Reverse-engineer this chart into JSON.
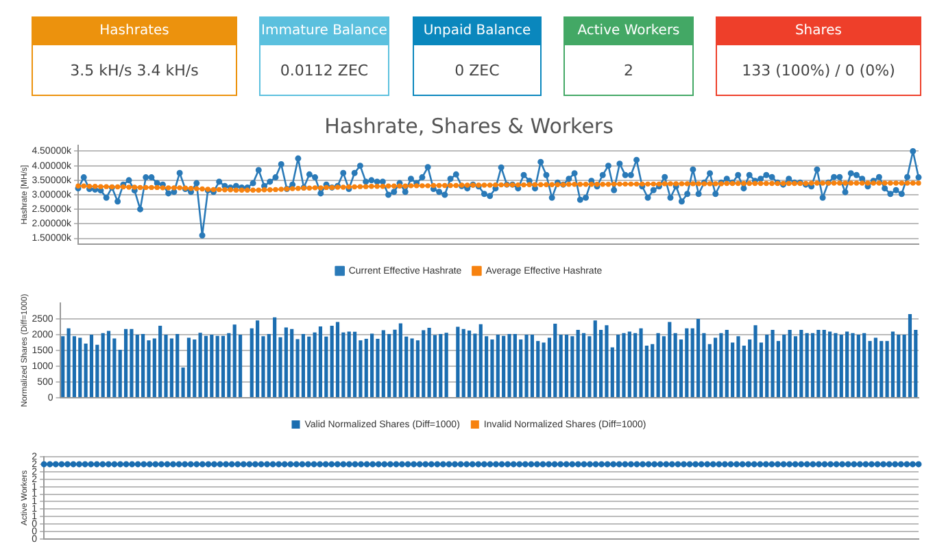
{
  "chart_data": [
    {
      "type": "other",
      "categories": [
        "Hashrates",
        "Immature Balance",
        "Unpaid Balance",
        "Active Workers",
        "Shares"
      ],
      "annotations": [
        "3.5 kH/s   3.4 kH/s",
        "0.0112 ZEC",
        "0 ZEC",
        "2",
        "133 (100%) / 0 (0%)"
      ],
      "colors": [
        "#ec920d",
        "#5bc0de",
        "#0a87bd",
        "#43a865",
        "#ee3f2a"
      ]
    },
    {
      "type": "line",
      "title": "Hashrate, Shares & Workers",
      "ylabel": "Hashrate [MH/s]",
      "legend": "bottom",
      "grid": "y",
      "marker": "circle",
      "tick_labels": "y",
      "ylim": [
        1.3,
        4.7
      ],
      "yticks": [
        {
          "value": 1.5,
          "label": "1.50000k"
        },
        {
          "value": 2,
          "label": "2.00000k"
        },
        {
          "value": 2.5,
          "label": "2.50000k"
        },
        {
          "value": 3,
          "label": "3.00000k"
        },
        {
          "value": 3.5,
          "label": "3.50000k"
        },
        {
          "value": 4,
          "label": "4.00000k"
        },
        {
          "value": 4.5,
          "label": "4.50000k"
        }
      ],
      "categories": [
        null,
        null,
        null,
        null,
        null,
        null,
        null,
        null,
        null,
        null,
        null,
        null,
        null,
        null,
        null,
        null,
        null,
        null,
        null,
        null,
        null,
        null,
        null,
        null,
        null,
        null,
        null,
        null,
        null,
        null,
        null,
        null,
        null,
        null,
        null,
        null,
        null,
        null,
        null,
        null,
        null,
        null,
        null,
        null,
        null,
        null,
        null,
        null,
        null,
        null,
        null,
        null,
        null,
        null,
        null,
        null,
        null,
        null,
        null,
        null,
        null,
        null,
        null,
        null,
        null,
        null,
        null,
        null,
        null,
        null,
        null,
        null,
        null,
        null,
        null,
        null,
        null,
        null,
        null,
        null,
        null,
        null,
        null,
        null,
        null,
        null,
        null,
        null,
        null,
        null,
        null,
        null,
        null,
        null,
        null,
        null,
        null,
        null,
        null,
        null,
        null,
        null,
        null,
        null,
        null,
        null,
        null,
        null,
        null,
        null,
        null,
        null,
        null,
        null,
        null,
        null,
        null,
        null,
        null,
        null,
        null,
        null,
        null,
        null,
        null,
        null,
        null,
        null,
        null,
        null,
        null,
        null,
        null,
        null,
        null,
        null,
        null,
        null,
        null,
        null,
        null,
        null,
        null,
        null,
        null,
        null,
        null,
        null,
        null,
        null
      ],
      "series": [
        {
          "name": "Current Effective Hashrate",
          "color": "#2a7ab8",
          "values": [
            3.22,
            3.6,
            3.2,
            3.18,
            3.15,
            2.9,
            3.25,
            2.77,
            3.35,
            3.5,
            3.15,
            2.5,
            3.6,
            3.6,
            3.4,
            3.35,
            3.05,
            3.1,
            3.75,
            3.2,
            3.1,
            3.4,
            1.6,
            3.15,
            3.1,
            3.45,
            3.3,
            3.25,
            3.3,
            3.25,
            3.25,
            3.4,
            3.85,
            3.3,
            3.45,
            3.6,
            4.05,
            3.2,
            3.35,
            4.25,
            3.25,
            3.7,
            3.6,
            3.05,
            3.35,
            3.25,
            3.3,
            3.75,
            3.2,
            3.75,
            4.0,
            3.45,
            3.5,
            3.45,
            3.45,
            3.0,
            3.1,
            3.4,
            3.1,
            3.55,
            3.4,
            3.6,
            3.95,
            3.2,
            3.1,
            3.0,
            3.55,
            3.7,
            3.3,
            3.22,
            3.35,
            3.29,
            3.03,
            2.96,
            3.22,
            3.94,
            3.35,
            3.35,
            3.22,
            3.68,
            3.48,
            3.22,
            4.13,
            3.68,
            2.9,
            3.42,
            3.35,
            3.55,
            3.74,
            2.83,
            2.9,
            3.48,
            3.29,
            3.68,
            4.0,
            3.16,
            4.07,
            3.68,
            3.68,
            4.2,
            3.29,
            2.9,
            3.16,
            3.29,
            3.61,
            2.9,
            3.29,
            2.77,
            3.03,
            3.87,
            3.03,
            3.42,
            3.74,
            3.03,
            3.42,
            3.55,
            3.42,
            3.68,
            3.22,
            3.68,
            3.48,
            3.55,
            3.68,
            3.61,
            3.42,
            3.35,
            3.55,
            3.42,
            3.42,
            3.35,
            3.29,
            3.87,
            2.9,
            3.42,
            3.61,
            3.61,
            3.09,
            3.74,
            3.68,
            3.55,
            3.29,
            3.48,
            3.61,
            3.22,
            3.03,
            3.16,
            3.03,
            3.61,
            4.5,
            3.6
          ]
        },
        {
          "name": "Average Effective Hashrate",
          "color": "#f7820f",
          "values": [
            3.3,
            3.3,
            3.29,
            3.29,
            3.28,
            3.28,
            3.27,
            3.27,
            3.27,
            3.26,
            3.26,
            3.25,
            3.25,
            3.25,
            3.25,
            3.24,
            3.24,
            3.24,
            3.24,
            3.23,
            3.22,
            3.21,
            3.2,
            3.19,
            3.18,
            3.18,
            3.17,
            3.17,
            3.16,
            3.16,
            3.16,
            3.16,
            3.16,
            3.17,
            3.17,
            3.18,
            3.19,
            3.2,
            3.21,
            3.22,
            3.23,
            3.23,
            3.24,
            3.24,
            3.25,
            3.25,
            3.26,
            3.26,
            3.27,
            3.27,
            3.28,
            3.28,
            3.29,
            3.29,
            3.29,
            3.3,
            3.3,
            3.3,
            3.3,
            3.31,
            3.31,
            3.31,
            3.31,
            3.32,
            3.32,
            3.32,
            3.32,
            3.32,
            3.33,
            3.33,
            3.33,
            3.33,
            3.33,
            3.33,
            3.34,
            3.34,
            3.34,
            3.34,
            3.34,
            3.34,
            3.35,
            3.35,
            3.35,
            3.35,
            3.35,
            3.35,
            3.35,
            3.36,
            3.36,
            3.36,
            3.36,
            3.36,
            3.36,
            3.36,
            3.36,
            3.37,
            3.37,
            3.37,
            3.37,
            3.37,
            3.37,
            3.37,
            3.37,
            3.37,
            3.38,
            3.38,
            3.38,
            3.38,
            3.38,
            3.38,
            3.38,
            3.38,
            3.38,
            3.38,
            3.38,
            3.39,
            3.39,
            3.39,
            3.39,
            3.39,
            3.39,
            3.39,
            3.39,
            3.39,
            3.39,
            3.39,
            3.39,
            3.39,
            3.39,
            3.39,
            3.4,
            3.4,
            3.4,
            3.4,
            3.4,
            3.4,
            3.4,
            3.4,
            3.4,
            3.4,
            3.4,
            3.4,
            3.4,
            3.4,
            3.4,
            3.4,
            3.4,
            3.4,
            3.4,
            3.4
          ]
        }
      ]
    },
    {
      "type": "bar",
      "ylabel": "Normalized Shares (Diff=1000)",
      "legend": "bottom",
      "grid": "y",
      "tick_labels": "y",
      "ylim": [
        0,
        3000
      ],
      "yticks": [
        0,
        500,
        1000,
        1500,
        2000,
        2500
      ],
      "categories": [
        null,
        null,
        null,
        null,
        null,
        null,
        null,
        null,
        null,
        null,
        null,
        null,
        null,
        null,
        null,
        null,
        null,
        null,
        null,
        null,
        null,
        null,
        null,
        null,
        null,
        null,
        null,
        null,
        null,
        null,
        null,
        null,
        null,
        null,
        null,
        null,
        null,
        null,
        null,
        null,
        null,
        null,
        null,
        null,
        null,
        null,
        null,
        null,
        null,
        null,
        null,
        null,
        null,
        null,
        null,
        null,
        null,
        null,
        null,
        null,
        null,
        null,
        null,
        null,
        null,
        null,
        null,
        null,
        null,
        null,
        null,
        null,
        null,
        null,
        null,
        null,
        null,
        null,
        null,
        null,
        null,
        null,
        null,
        null,
        null,
        null,
        null,
        null,
        null,
        null,
        null,
        null,
        null,
        null,
        null,
        null,
        null,
        null,
        null,
        null,
        null,
        null,
        null,
        null,
        null,
        null,
        null,
        null,
        null,
        null,
        null,
        null,
        null,
        null,
        null,
        null,
        null,
        null,
        null,
        null,
        null,
        null,
        null,
        null,
        null,
        null,
        null,
        null,
        null,
        null,
        null,
        null,
        null,
        null,
        null,
        null,
        null,
        null,
        null,
        null,
        null,
        null,
        null,
        null,
        null,
        null,
        null,
        null,
        null,
        null
      ],
      "stacked": true,
      "series": [
        {
          "name": "Valid Normalized Shares (Diff=1000)",
          "color": "#1b6db0",
          "values": [
            1950,
            2200,
            1950,
            1900,
            1720,
            2000,
            1680,
            2050,
            2120,
            1880,
            1520,
            2180,
            2180,
            2000,
            2020,
            1820,
            1880,
            2280,
            2000,
            1880,
            2020,
            960,
            1900,
            1850,
            2060,
            1960,
            2000,
            1960,
            1960,
            2050,
            2320,
            2000,
            null,
            2200,
            2450,
            1950,
            2020,
            2550,
            1920,
            2230,
            2180,
            1860,
            2020,
            1940,
            2070,
            2260,
            1940,
            2280,
            2400,
            2070,
            2100,
            2090,
            1820,
            1870,
            2030,
            1870,
            2140,
            2020,
            2160,
            2360,
            1940,
            1880,
            1820,
            2140,
            2220,
            1990,
            2020,
            2060,
            null,
            2250,
            2180,
            2130,
            2030,
            2330,
            1950,
            1850,
            2000,
            1960,
            2020,
            2020,
            1850,
            2000,
            2000,
            1800,
            1750,
            1900,
            2350,
            2000,
            2000,
            1950,
            2150,
            2050,
            1950,
            2450,
            2150,
            2300,
            1600,
            2000,
            2050,
            2100,
            2050,
            2200,
            1650,
            1700,
            2050,
            1950,
            2400,
            2050,
            1850,
            2200,
            2200,
            2500,
            2050,
            1700,
            1900,
            2050,
            2150,
            1750,
            1950,
            1650,
            1850,
            2300,
            1750,
            2000,
            2150,
            1800,
            2000,
            2150,
            1950,
            2150,
            2050,
            2050,
            2150,
            2150,
            2100,
            2050,
            2000,
            2100,
            2050,
            2000,
            2050,
            1800,
            1900,
            1800,
            1800,
            2100,
            2000,
            2000,
            2650,
            2150
          ]
        },
        {
          "name": "Invalid Normalized Shares (Diff=1000)",
          "color": "#f7820f",
          "values": [
            0,
            0,
            0,
            0,
            0,
            0,
            0,
            0,
            0,
            0,
            0,
            0,
            0,
            0,
            0,
            0,
            0,
            0,
            0,
            0,
            0,
            0,
            0,
            0,
            0,
            0,
            0,
            0,
            0,
            0,
            0,
            0,
            0,
            0,
            0,
            0,
            0,
            0,
            0,
            0,
            0,
            0,
            0,
            0,
            0,
            0,
            0,
            0,
            0,
            0,
            0,
            0,
            0,
            0,
            0,
            0,
            0,
            0,
            0,
            0,
            0,
            0,
            0,
            0,
            0,
            0,
            0,
            0,
            0,
            0,
            0,
            0,
            0,
            0,
            0,
            0,
            0,
            0,
            0,
            0,
            0,
            0,
            0,
            0,
            0,
            0,
            0,
            0,
            0,
            0,
            0,
            0,
            0,
            0,
            0,
            0,
            0,
            0,
            0,
            0,
            0,
            0,
            0,
            0,
            0,
            0,
            0,
            0,
            0,
            0,
            0,
            0,
            0,
            0,
            0,
            0,
            0,
            0,
            0,
            0,
            0,
            0,
            0,
            0,
            0,
            0,
            0,
            0,
            0,
            0,
            0,
            0,
            0,
            0,
            0,
            0,
            0,
            0,
            0,
            0,
            0,
            0,
            0,
            0,
            0,
            0,
            0,
            0,
            0,
            0
          ]
        }
      ]
    },
    {
      "type": "line",
      "ylabel": "Active Workers",
      "grid": "y",
      "marker": "circle",
      "tick_labels": "y",
      "ylim": [
        0,
        2.2
      ],
      "yticks": [
        {
          "value": 0,
          "label": "0"
        },
        {
          "value": 0.2,
          "label": "0"
        },
        {
          "value": 0.4,
          "label": "0"
        },
        {
          "value": 0.6,
          "label": "1"
        },
        {
          "value": 0.8,
          "label": "1"
        },
        {
          "value": 1,
          "label": "1"
        },
        {
          "value": 1.2,
          "label": "1"
        },
        {
          "value": 1.4,
          "label": "1"
        },
        {
          "value": 1.6,
          "label": "2"
        },
        {
          "value": 1.8,
          "label": "2"
        },
        {
          "value": 2,
          "label": "2"
        },
        {
          "value": 2.2,
          "label": "2"
        }
      ],
      "categories": [
        null,
        null,
        null,
        null,
        null,
        null,
        null,
        null,
        null,
        null,
        null,
        null,
        null,
        null,
        null,
        null,
        null,
        null,
        null,
        null,
        null,
        null,
        null,
        null,
        null,
        null,
        null,
        null,
        null,
        null,
        null,
        null,
        null,
        null,
        null,
        null,
        null,
        null,
        null,
        null,
        null,
        null,
        null,
        null,
        null,
        null,
        null,
        null,
        null,
        null,
        null,
        null,
        null,
        null,
        null,
        null,
        null,
        null,
        null,
        null,
        null,
        null,
        null,
        null,
        null,
        null,
        null,
        null,
        null,
        null,
        null,
        null,
        null,
        null,
        null,
        null,
        null,
        null,
        null,
        null,
        null,
        null,
        null,
        null,
        null,
        null,
        null,
        null,
        null,
        null,
        null,
        null,
        null,
        null,
        null,
        null,
        null,
        null,
        null,
        null,
        null,
        null,
        null,
        null,
        null,
        null,
        null,
        null,
        null,
        null,
        null,
        null,
        null,
        null,
        null,
        null,
        null,
        null,
        null,
        null,
        null,
        null,
        null,
        null,
        null,
        null,
        null,
        null,
        null,
        null,
        null,
        null,
        null,
        null,
        null,
        null,
        null,
        null,
        null,
        null,
        null,
        null,
        null,
        null,
        null,
        null,
        null,
        null,
        null,
        null
      ],
      "series": [
        {
          "color": "#1b6db0",
          "values": [
            2,
            2,
            2,
            2,
            2,
            2,
            2,
            2,
            2,
            2,
            2,
            2,
            2,
            2,
            2,
            2,
            2,
            2,
            2,
            2,
            2,
            2,
            2,
            2,
            2,
            2,
            2,
            2,
            2,
            2,
            2,
            2,
            2,
            2,
            2,
            2,
            2,
            2,
            2,
            2,
            2,
            2,
            2,
            2,
            2,
            2,
            2,
            2,
            2,
            2,
            2,
            2,
            2,
            2,
            2,
            2,
            2,
            2,
            2,
            2,
            2,
            2,
            2,
            2,
            2,
            2,
            2,
            2,
            2,
            2,
            2,
            2,
            2,
            2,
            2,
            2,
            2,
            2,
            2,
            2,
            2,
            2,
            2,
            2,
            2,
            2,
            2,
            2,
            2,
            2,
            2,
            2,
            2,
            2,
            2,
            2,
            2,
            2,
            2,
            2,
            2,
            2,
            2,
            2,
            2,
            2,
            2,
            2,
            2,
            2,
            2,
            2,
            2,
            2,
            2,
            2,
            2,
            2,
            2,
            2,
            2,
            2,
            2,
            2,
            2,
            2,
            2,
            2,
            2,
            2,
            2,
            2,
            2,
            2,
            2,
            2,
            2,
            2,
            2,
            2,
            2,
            2,
            2,
            2,
            2,
            2,
            2,
            2,
            2,
            2
          ]
        }
      ]
    }
  ]
}
